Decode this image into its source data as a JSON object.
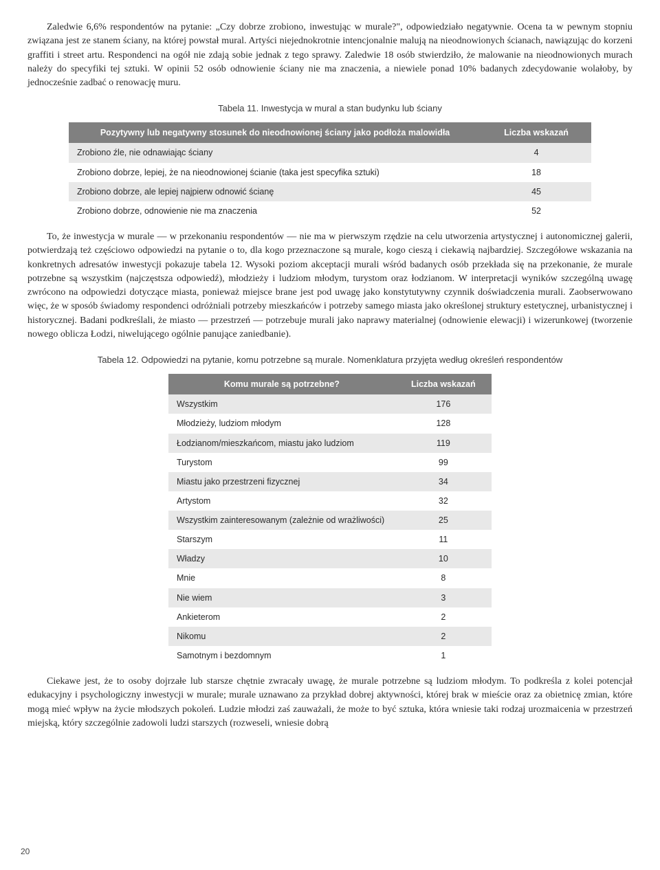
{
  "para1": "Zaledwie 6,6% respondentów na pytanie: „Czy dobrze zrobiono, inwestując w murale?\", odpowiedziało negatywnie. Ocena ta w pewnym stopniu związana jest ze stanem ściany, na której powstał mural. Artyści niejednokrotnie intencjonalnie malują na nieodnowionych ścianach, nawiązując do korzeni graffiti i street artu. Respondenci na ogół nie zdają sobie jednak z tego sprawy. Zaledwie 18 osób stwierdziło, że malowanie na nieodnowionych murach należy do specyfiki tej sztuki. W opinii 52 osób odnowienie ściany nie ma znaczenia, a niewiele ponad 10% badanych zdecydowanie wolałoby, by jednocześnie zadbać o renowację muru.",
  "table11": {
    "caption": "Tabela 11. Inwestycja w mural a stan budynku lub ściany",
    "header": [
      "Pozytywny lub negatywny stosunek do nieodnowionej ściany jako podłoża malowidła",
      "Liczba wskazań"
    ],
    "rows": [
      {
        "label": "Zrobiono źle, nie odnawiając ściany",
        "val": "4"
      },
      {
        "label": "Zrobiono dobrze, lepiej, że na nieodnowionej ścianie (taka jest specyfika sztuki)",
        "val": "18"
      },
      {
        "label": "Zrobiono dobrze, ale lepiej najpierw odnowić ścianę",
        "val": "45"
      },
      {
        "label": "Zrobiono dobrze, odnowienie nie ma znaczenia",
        "val": "52"
      }
    ],
    "th_bg": "#808080",
    "th_color": "#ffffff",
    "row_odd_bg": "#e8e8e8",
    "row_even_bg": "#ffffff"
  },
  "para2": "To, że inwestycja w murale — w przekonaniu respondentów — nie ma w pierwszym rzędzie na celu utworzenia artystycznej i autonomicznej galerii, potwierdzają też częściowo odpowiedzi na pytanie o to, dla kogo przeznaczone są murale, kogo cieszą i ciekawią najbardziej. Szczegółowe wskazania na konkretnych adresatów inwestycji pokazuje tabela 12. Wysoki poziom akceptacji murali wśród badanych osób przekłada się na przekonanie, że murale potrzebne są wszystkim (najczęstsza odpowiedź), młodzieży i ludziom młodym, turystom oraz łodzianom. W interpretacji wyników szczególną uwagę zwrócono na odpowiedzi dotyczące miasta, ponieważ miejsce brane jest pod uwagę jako konstytutywny czynnik doświadczenia murali. Zaobserwowano więc, że w sposób świadomy respondenci odróżniali potrzeby mieszkańców i potrzeby samego miasta jako określonej struktury estetycznej, urbanistycznej i historycznej. Badani podkreślali, że miasto — przestrzeń — potrzebuje murali jako naprawy materialnej (odnowienie elewacji) i wizerunkowej (tworzenie nowego oblicza Łodzi, niwelującego ogólnie panujące zaniedbanie).",
  "table12": {
    "caption": "Tabela 12. Odpowiedzi na pytanie, komu potrzebne są murale. Nomenklatura przyjęta według określeń respondentów",
    "header": [
      "Komu murale są potrzebne?",
      "Liczba wskazań"
    ],
    "rows": [
      {
        "label": "Wszystkim",
        "val": "176"
      },
      {
        "label": "Młodzieży, ludziom młodym",
        "val": "128"
      },
      {
        "label": "Łodzianom/mieszkańcom, miastu jako ludziom",
        "val": "119"
      },
      {
        "label": "Turystom",
        "val": "99"
      },
      {
        "label": "Miastu jako przestrzeni fizycznej",
        "val": "34"
      },
      {
        "label": "Artystom",
        "val": "32"
      },
      {
        "label": "Wszystkim zainteresowanym (zależnie od wrażliwości)",
        "val": "25"
      },
      {
        "label": "Starszym",
        "val": "11"
      },
      {
        "label": "Władzy",
        "val": "10"
      },
      {
        "label": "Mnie",
        "val": "8"
      },
      {
        "label": "Nie wiem",
        "val": "3"
      },
      {
        "label": "Ankieterom",
        "val": "2"
      },
      {
        "label": "Nikomu",
        "val": "2"
      },
      {
        "label": "Samotnym i bezdomnym",
        "val": "1"
      }
    ],
    "th_bg": "#808080",
    "th_color": "#ffffff",
    "row_odd_bg": "#e8e8e8",
    "row_even_bg": "#ffffff"
  },
  "para3": "Ciekawe jest, że to osoby dojrzałe lub starsze chętnie zwracały uwagę, że murale potrzebne są ludziom młodym. To podkreśla z kolei potencjał edukacyjny i psychologiczny inwestycji w murale; murale uznawano za przykład dobrej aktywności, której brak w mieście oraz za obietnicę zmian, które mogą mieć wpływ na życie młodszych pokoleń. Ludzie młodzi zaś zauważali, że może to być sztuka, która wniesie taki rodzaj urozmaicenia w przestrzeń miejską, który szczególnie zadowoli ludzi starszych (rozweseli, wniesie dobrą",
  "page_number": "20"
}
